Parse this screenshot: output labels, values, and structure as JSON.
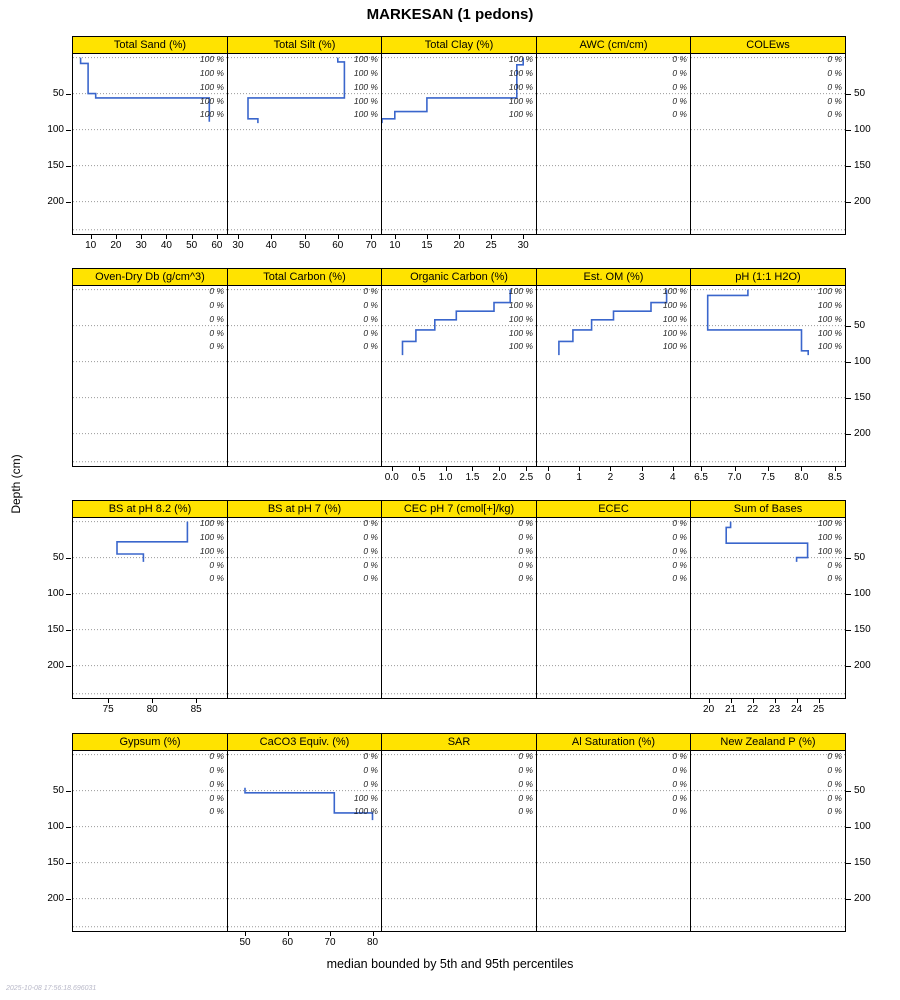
{
  "title": "MARKESAN (1 pedons)",
  "ylab": "Depth (cm)",
  "caption": "median bounded by 5th and 95th percentiles",
  "timestamp": "2025-10-08 17:56:18.696031",
  "colors": {
    "strip_bg": "#ffe300",
    "line": "#3a66cc",
    "grid": "#999999",
    "pct_label": "#222222"
  },
  "chart_data": {
    "type": "line",
    "subtype": "multi-panel-depth-step-profiles",
    "ylim": [
      -5,
      245
    ],
    "depth_ticks": [
      50,
      100,
      150,
      200
    ],
    "depth_tick_labels": [
      "50",
      "100",
      "150",
      "200"
    ],
    "grid_depths": [
      0,
      50,
      100,
      150,
      200,
      239
    ],
    "label_depths": [
      4,
      23,
      42,
      61,
      80
    ],
    "rows": [
      {
        "y_left": true,
        "y_right": true,
        "panels": [
          {
            "title": "Total Sand (%)",
            "xlim": [
              3,
              64
            ],
            "xticks": {
              "values": [
                10,
                20,
                30,
                40,
                50,
                60
              ],
              "labels": [
                "10",
                "20",
                "30",
                "40",
                "50",
                "60"
              ]
            },
            "pct": [
              "100 %",
              "100 %",
              "100 %",
              "100 %",
              "100 %"
            ],
            "line": [
              [
                6,
                0
              ],
              [
                6,
                8
              ],
              [
                9,
                8
              ],
              [
                9,
                50
              ],
              [
                12,
                50
              ],
              [
                12,
                56
              ],
              [
                57,
                56
              ],
              [
                57,
                89
              ]
            ]
          },
          {
            "title": "Total Silt (%)",
            "xlim": [
              27,
              73
            ],
            "xticks": {
              "values": [
                30,
                40,
                50,
                60,
                70
              ],
              "labels": [
                "30",
                "40",
                "50",
                "60",
                "70"
              ]
            },
            "pct": [
              "100 %",
              "100 %",
              "100 %",
              "100 %",
              "100 %"
            ],
            "line": [
              [
                60,
                0
              ],
              [
                60,
                6
              ],
              [
                62,
                6
              ],
              [
                62,
                56
              ],
              [
                33,
                56
              ],
              [
                33,
                85
              ],
              [
                36,
                85
              ],
              [
                36,
                91
              ]
            ]
          },
          {
            "title": "Total Clay (%)",
            "xlim": [
              8,
              32
            ],
            "xticks": {
              "values": [
                10,
                15,
                20,
                25,
                30
              ],
              "labels": [
                "10",
                "15",
                "20",
                "25",
                "30"
              ]
            },
            "pct": [
              "100 %",
              "100 %",
              "100 %",
              "100 %",
              "100 %"
            ],
            "line": [
              [
                30,
                0
              ],
              [
                30,
                10
              ],
              [
                29,
                10
              ],
              [
                29,
                56
              ],
              [
                15,
                56
              ],
              [
                15,
                75
              ],
              [
                10,
                75
              ],
              [
                10,
                85
              ],
              [
                8,
                85
              ],
              [
                8,
                91
              ]
            ]
          },
          {
            "title": "AWC (cm/cm)",
            "xlim": [
              0,
              1
            ],
            "xticks": null,
            "pct": [
              "0 %",
              "0 %",
              "0 %",
              "0 %",
              "0 %"
            ],
            "line": []
          },
          {
            "title": "COLEws",
            "xlim": [
              0,
              1
            ],
            "xticks": null,
            "pct": [
              "0 %",
              "0 %",
              "0 %",
              "0 %",
              "0 %"
            ],
            "line": []
          }
        ]
      },
      {
        "y_left": false,
        "y_right": true,
        "panels": [
          {
            "title": "Oven-Dry Db (g/cm^3)",
            "xlim": [
              0,
              1
            ],
            "xticks": null,
            "pct": [
              "0 %",
              "0 %",
              "0 %",
              "0 %",
              "0 %"
            ],
            "line": []
          },
          {
            "title": "Total Carbon (%)",
            "xlim": [
              0,
              1
            ],
            "xticks": null,
            "pct": [
              "0 %",
              "0 %",
              "0 %",
              "0 %",
              "0 %"
            ],
            "line": []
          },
          {
            "title": "Organic Carbon (%)",
            "xlim": [
              -0.18,
              2.68
            ],
            "xticks": {
              "values": [
                0,
                0.5,
                1,
                1.5,
                2,
                2.5
              ],
              "labels": [
                "0.0",
                "0.5",
                "1.0",
                "1.5",
                "2.0",
                "2.5"
              ]
            },
            "pct": [
              "100 %",
              "100 %",
              "100 %",
              "100 %",
              "100 %"
            ],
            "line": [
              [
                2.2,
                0
              ],
              [
                2.2,
                18
              ],
              [
                1.9,
                18
              ],
              [
                1.9,
                30
              ],
              [
                1.2,
                30
              ],
              [
                1.2,
                42
              ],
              [
                0.8,
                42
              ],
              [
                0.8,
                56
              ],
              [
                0.45,
                56
              ],
              [
                0.45,
                72
              ],
              [
                0.2,
                72
              ],
              [
                0.2,
                91
              ]
            ]
          },
          {
            "title": "Est. OM (%)",
            "xlim": [
              -0.35,
              4.55
            ],
            "xticks": {
              "values": [
                0,
                1,
                2,
                3,
                4
              ],
              "labels": [
                "0",
                "1",
                "2",
                "3",
                "4"
              ]
            },
            "pct": [
              "100 %",
              "100 %",
              "100 %",
              "100 %",
              "100 %"
            ],
            "line": [
              [
                3.8,
                0
              ],
              [
                3.8,
                18
              ],
              [
                3.3,
                18
              ],
              [
                3.3,
                30
              ],
              [
                2.1,
                30
              ],
              [
                2.1,
                42
              ],
              [
                1.4,
                42
              ],
              [
                1.4,
                56
              ],
              [
                0.8,
                56
              ],
              [
                0.8,
                72
              ],
              [
                0.35,
                72
              ],
              [
                0.35,
                91
              ]
            ]
          },
          {
            "title": "pH (1:1 H2O)",
            "xlim": [
              6.35,
              8.65
            ],
            "xticks": {
              "values": [
                6.5,
                7,
                7.5,
                8,
                8.5
              ],
              "labels": [
                "6.5",
                "7.0",
                "7.5",
                "8.0",
                "8.5"
              ]
            },
            "pct": [
              "100 %",
              "100 %",
              "100 %",
              "100 %",
              "100 %"
            ],
            "line": [
              [
                7.2,
                0
              ],
              [
                7.2,
                8
              ],
              [
                6.6,
                8
              ],
              [
                6.6,
                56
              ],
              [
                8.0,
                56
              ],
              [
                8.0,
                85
              ],
              [
                8.1,
                85
              ],
              [
                8.1,
                91
              ]
            ]
          }
        ]
      },
      {
        "y_left": true,
        "y_right": true,
        "panels": [
          {
            "title": "BS at pH 8.2 (%)",
            "xlim": [
              71,
              88.5
            ],
            "xticks": {
              "values": [
                75,
                80,
                85
              ],
              "labels": [
                "75",
                "80",
                "85"
              ]
            },
            "pct": [
              "100 %",
              "100 %",
              "100 %",
              "0 %",
              "0 %"
            ],
            "line": [
              [
                84,
                0
              ],
              [
                84,
                28
              ],
              [
                76,
                28
              ],
              [
                76,
                45
              ],
              [
                79,
                45
              ],
              [
                79,
                56
              ]
            ]
          },
          {
            "title": "BS at pH 7 (%)",
            "xlim": [
              0,
              1
            ],
            "xticks": null,
            "pct": [
              "0 %",
              "0 %",
              "0 %",
              "0 %",
              "0 %"
            ],
            "line": []
          },
          {
            "title": "CEC pH 7 (cmol[+]/kg)",
            "xlim": [
              0,
              1
            ],
            "xticks": null,
            "pct": [
              "0 %",
              "0 %",
              "0 %",
              "0 %",
              "0 %"
            ],
            "line": []
          },
          {
            "title": "ECEC",
            "xlim": [
              0,
              1
            ],
            "xticks": null,
            "pct": [
              "0 %",
              "0 %",
              "0 %",
              "0 %",
              "0 %"
            ],
            "line": []
          },
          {
            "title": "Sum of Bases",
            "xlim": [
              19.2,
              26.2
            ],
            "xticks": {
              "values": [
                20,
                21,
                22,
                23,
                24,
                25
              ],
              "labels": [
                "20",
                "21",
                "22",
                "23",
                "24",
                "25"
              ]
            },
            "pct": [
              "100 %",
              "100 %",
              "100 %",
              "0 %",
              "0 %"
            ],
            "line": [
              [
                21,
                0
              ],
              [
                21,
                8
              ],
              [
                20.8,
                8
              ],
              [
                20.8,
                30
              ],
              [
                24.5,
                30
              ],
              [
                24.5,
                50
              ],
              [
                24,
                50
              ],
              [
                24,
                56
              ]
            ]
          }
        ]
      },
      {
        "y_left": true,
        "y_right": true,
        "panels": [
          {
            "title": "Gypsum (%)",
            "xlim": [
              0,
              1
            ],
            "xticks": null,
            "pct": [
              "0 %",
              "0 %",
              "0 %",
              "0 %",
              "0 %"
            ],
            "line": []
          },
          {
            "title": "CaCO3 Equiv. (%)",
            "xlim": [
              46,
              82
            ],
            "xticks": {
              "values": [
                50,
                60,
                70,
                80
              ],
              "labels": [
                "50",
                "60",
                "70",
                "80"
              ]
            },
            "pct": [
              "0 %",
              "0 %",
              "0 %",
              "100 %",
              "100 %"
            ],
            "line": [
              [
                50,
                46
              ],
              [
                50,
                53
              ],
              [
                71,
                53
              ],
              [
                71,
                81
              ],
              [
                80,
                81
              ],
              [
                80,
                91
              ]
            ]
          },
          {
            "title": "SAR",
            "xlim": [
              0,
              1
            ],
            "xticks": null,
            "pct": [
              "0 %",
              "0 %",
              "0 %",
              "0 %",
              "0 %"
            ],
            "line": []
          },
          {
            "title": "Al Saturation (%)",
            "xlim": [
              0,
              1
            ],
            "xticks": null,
            "pct": [
              "0 %",
              "0 %",
              "0 %",
              "0 %",
              "0 %"
            ],
            "line": []
          },
          {
            "title": "New Zealand P (%)",
            "xlim": [
              0,
              1
            ],
            "xticks": null,
            "pct": [
              "0 %",
              "0 %",
              "0 %",
              "0 %",
              "0 %"
            ],
            "line": []
          }
        ]
      }
    ]
  }
}
